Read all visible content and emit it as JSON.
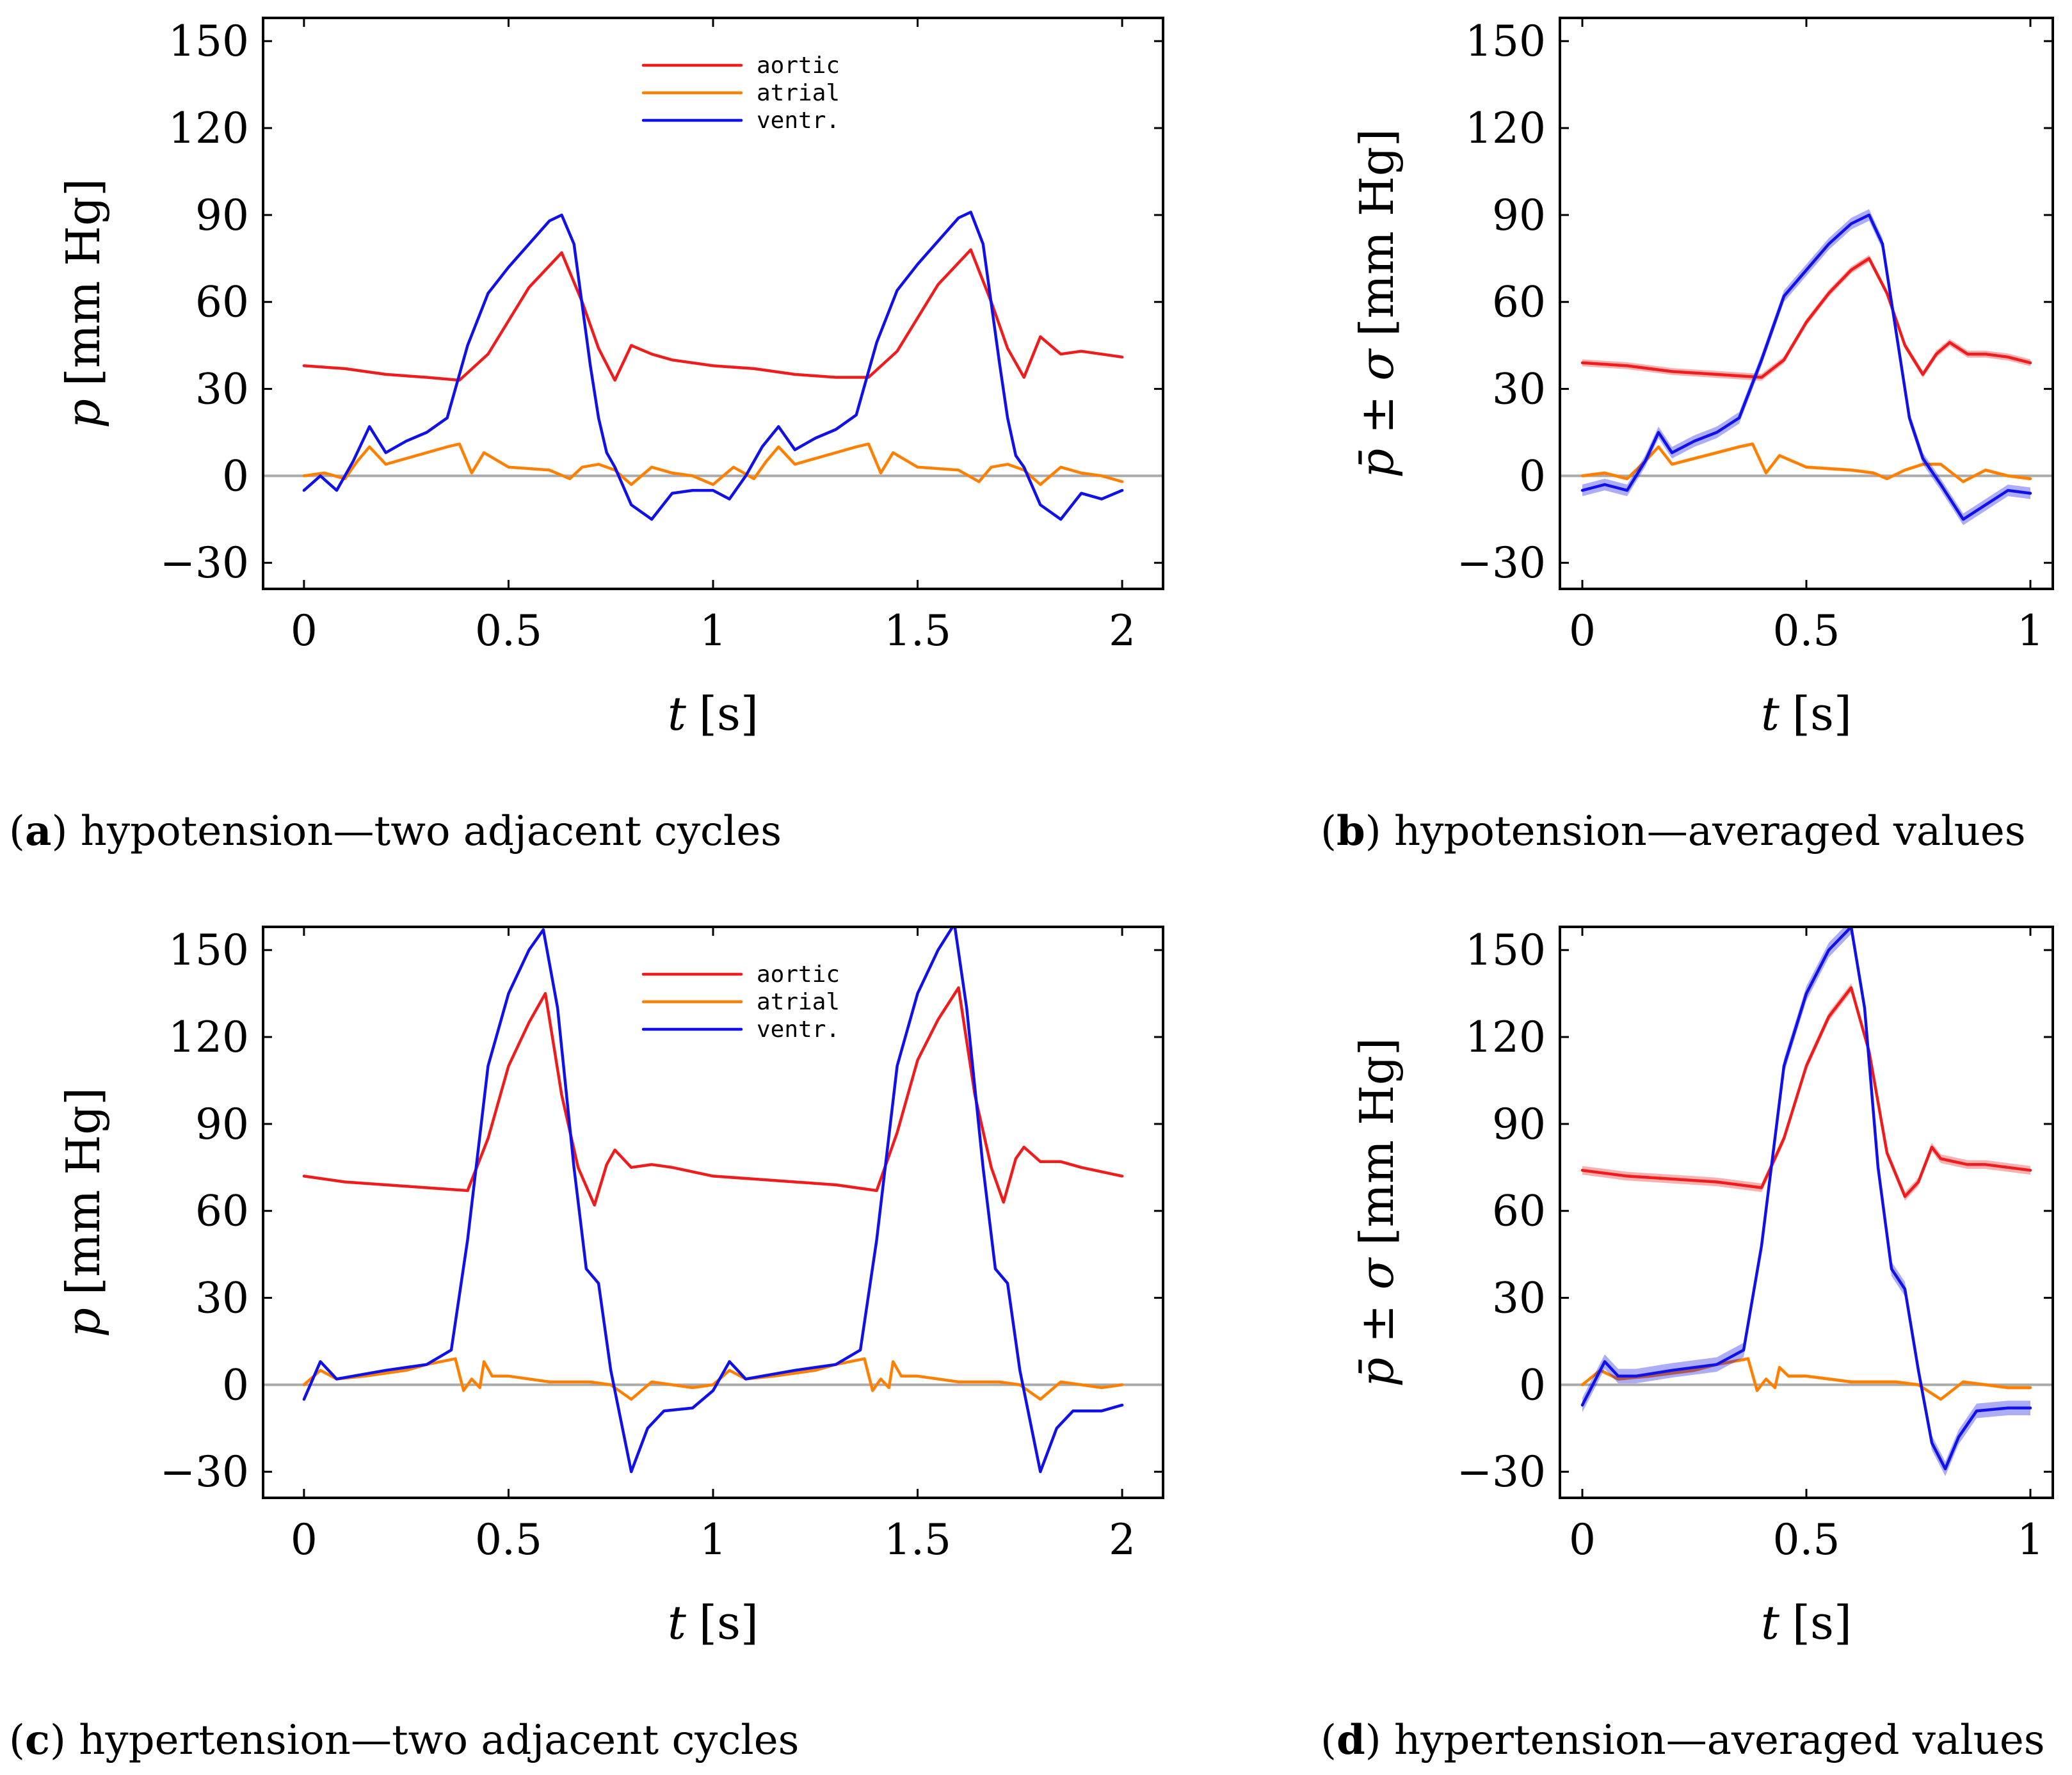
{
  "figure": {
    "colors": {
      "aortic": "#ee1c1c",
      "atrial": "#ff8000",
      "ventr": "#1010e8",
      "zero_line": "#aaaaaa"
    }
  },
  "chart_data": [
    {
      "id": "a",
      "type": "line",
      "caption_label": "a",
      "caption_text": "hypotension—two adjacent cycles",
      "xlabel_var": "t",
      "xlabel_unit": "[s]",
      "ylabel_var": "p",
      "ylabel_unit": "[mm Hg]",
      "xlim": [
        -0.1,
        2.1
      ],
      "ylim": [
        -39,
        158
      ],
      "xticks": [
        0,
        0.5,
        1,
        1.5,
        2
      ],
      "xtick_labels": [
        "0",
        "0.5",
        "1",
        "1.5",
        "2"
      ],
      "yticks": [
        -30,
        0,
        30,
        60,
        90,
        120,
        150
      ],
      "ytick_labels": [
        "−30",
        "0",
        "30",
        "60",
        "90",
        "120",
        "150"
      ],
      "legend": {
        "position": "top-center",
        "entries": [
          "aortic",
          "atrial",
          "ventr."
        ]
      },
      "series": [
        {
          "name": "aortic",
          "color_key": "aortic",
          "x": [
            0,
            0.1,
            0.2,
            0.3,
            0.38,
            0.45,
            0.55,
            0.63,
            0.68,
            0.72,
            0.76,
            0.8,
            0.85,
            0.9,
            1.0,
            1.1,
            1.2,
            1.3,
            1.38,
            1.45,
            1.55,
            1.63,
            1.68,
            1.72,
            1.76,
            1.8,
            1.85,
            1.9,
            2.0
          ],
          "y": [
            38,
            37,
            35,
            34,
            33,
            42,
            65,
            77,
            60,
            44,
            33,
            45,
            42,
            40,
            38,
            37,
            35,
            34,
            34,
            43,
            66,
            78,
            60,
            44,
            34,
            48,
            42,
            43,
            41
          ]
        },
        {
          "name": "atrial",
          "color_key": "atrial",
          "x": [
            0,
            0.05,
            0.1,
            0.13,
            0.16,
            0.2,
            0.25,
            0.3,
            0.35,
            0.38,
            0.41,
            0.44,
            0.5,
            0.6,
            0.65,
            0.68,
            0.72,
            0.76,
            0.8,
            0.85,
            0.9,
            0.95,
            1.0,
            1.05,
            1.1,
            1.13,
            1.16,
            1.2,
            1.25,
            1.3,
            1.35,
            1.38,
            1.41,
            1.44,
            1.5,
            1.6,
            1.65,
            1.68,
            1.72,
            1.76,
            1.8,
            1.85,
            1.9,
            1.95,
            2.0
          ],
          "y": [
            0,
            1,
            -1,
            5,
            10,
            4,
            6,
            8,
            10,
            11,
            1,
            8,
            3,
            2,
            -1,
            3,
            4,
            2,
            -3,
            3,
            1,
            0,
            -3,
            3,
            -1,
            5,
            10,
            4,
            6,
            8,
            10,
            11,
            1,
            8,
            3,
            2,
            -2,
            3,
            4,
            2,
            -3,
            3,
            1,
            0,
            -2
          ]
        },
        {
          "name": "ventr.",
          "color_key": "ventr",
          "x": [
            0,
            0.04,
            0.08,
            0.12,
            0.16,
            0.2,
            0.25,
            0.3,
            0.35,
            0.4,
            0.45,
            0.5,
            0.55,
            0.6,
            0.63,
            0.66,
            0.7,
            0.72,
            0.74,
            0.76,
            0.8,
            0.85,
            0.9,
            0.95,
            1.0,
            1.04,
            1.08,
            1.12,
            1.16,
            1.2,
            1.25,
            1.3,
            1.35,
            1.4,
            1.45,
            1.5,
            1.55,
            1.6,
            1.63,
            1.66,
            1.7,
            1.72,
            1.74,
            1.76,
            1.8,
            1.85,
            1.9,
            1.95,
            2.0
          ],
          "y": [
            -5,
            0,
            -5,
            5,
            17,
            8,
            12,
            15,
            20,
            45,
            63,
            72,
            80,
            88,
            90,
            80,
            38,
            20,
            8,
            3,
            -10,
            -15,
            -6,
            -5,
            -5,
            -8,
            0,
            10,
            17,
            9,
            13,
            16,
            21,
            46,
            64,
            73,
            81,
            89,
            91,
            80,
            39,
            20,
            7,
            3,
            -10,
            -15,
            -6,
            -8,
            -5
          ]
        }
      ]
    },
    {
      "id": "b",
      "type": "line",
      "caption_label": "b",
      "caption_text": "hypotension—averaged values",
      "xlabel_var": "t",
      "xlabel_unit": "[s]",
      "ylabel_var": "p̄ ± σ",
      "ylabel_unit": "[mm Hg]",
      "xlim": [
        -0.05,
        1.05
      ],
      "ylim": [
        -39,
        158
      ],
      "xticks": [
        0,
        0.5,
        1
      ],
      "xtick_labels": [
        "0",
        "0.5",
        "1"
      ],
      "yticks": [
        -30,
        0,
        30,
        60,
        90,
        120,
        150
      ],
      "ytick_labels": [
        "−30",
        "0",
        "30",
        "60",
        "90",
        "120",
        "150"
      ],
      "legend": null,
      "series": [
        {
          "name": "aortic",
          "color_key": "aortic",
          "band": 1.2,
          "x": [
            0,
            0.1,
            0.2,
            0.3,
            0.4,
            0.45,
            0.5,
            0.55,
            0.6,
            0.64,
            0.68,
            0.72,
            0.76,
            0.79,
            0.82,
            0.86,
            0.9,
            0.95,
            1.0
          ],
          "y": [
            39,
            38,
            36,
            35,
            34,
            40,
            53,
            63,
            71,
            75,
            63,
            45,
            35,
            42,
            46,
            42,
            42,
            41,
            39
          ]
        },
        {
          "name": "atrial",
          "color_key": "atrial",
          "band": 0.6,
          "x": [
            0,
            0.05,
            0.1,
            0.14,
            0.17,
            0.2,
            0.25,
            0.3,
            0.35,
            0.38,
            0.41,
            0.44,
            0.5,
            0.6,
            0.65,
            0.68,
            0.72,
            0.76,
            0.8,
            0.85,
            0.9,
            0.95,
            1.0
          ],
          "y": [
            0,
            1,
            -1,
            5,
            10,
            4,
            6,
            8,
            10,
            11,
            1,
            7,
            3,
            2,
            1,
            -1,
            2,
            4,
            4,
            -2,
            2,
            0,
            -1
          ]
        },
        {
          "name": "ventr.",
          "color_key": "ventr",
          "band": 2.0,
          "x": [
            0,
            0.05,
            0.1,
            0.14,
            0.17,
            0.2,
            0.25,
            0.3,
            0.35,
            0.4,
            0.45,
            0.5,
            0.55,
            0.6,
            0.64,
            0.67,
            0.7,
            0.73,
            0.76,
            0.8,
            0.85,
            0.9,
            0.95,
            1.0
          ],
          "y": [
            -5,
            -3,
            -5,
            5,
            15,
            8,
            12,
            15,
            20,
            40,
            62,
            71,
            80,
            87,
            90,
            80,
            50,
            20,
            6,
            -3,
            -15,
            -10,
            -5,
            -6
          ]
        }
      ]
    },
    {
      "id": "c",
      "type": "line",
      "caption_label": "c",
      "caption_text": "hypertension—two adjacent cycles",
      "xlabel_var": "t",
      "xlabel_unit": "[s]",
      "ylabel_var": "p",
      "ylabel_unit": "[mm Hg]",
      "xlim": [
        -0.1,
        2.1
      ],
      "ylim": [
        -39,
        158
      ],
      "xticks": [
        0,
        0.5,
        1,
        1.5,
        2
      ],
      "xtick_labels": [
        "0",
        "0.5",
        "1",
        "1.5",
        "2"
      ],
      "yticks": [
        -30,
        0,
        30,
        60,
        90,
        120,
        150
      ],
      "ytick_labels": [
        "−30",
        "0",
        "30",
        "60",
        "90",
        "120",
        "150"
      ],
      "legend": {
        "position": "top-center",
        "entries": [
          "aortic",
          "atrial",
          "ventr."
        ]
      },
      "series": [
        {
          "name": "aortic",
          "color_key": "aortic",
          "x": [
            0,
            0.1,
            0.2,
            0.3,
            0.4,
            0.45,
            0.5,
            0.55,
            0.59,
            0.63,
            0.67,
            0.71,
            0.74,
            0.76,
            0.8,
            0.85,
            0.9,
            1.0,
            1.1,
            1.2,
            1.3,
            1.4,
            1.45,
            1.5,
            1.55,
            1.6,
            1.64,
            1.68,
            1.71,
            1.74,
            1.76,
            1.8,
            1.85,
            1.9,
            2.0
          ],
          "y": [
            72,
            70,
            69,
            68,
            67,
            85,
            110,
            125,
            135,
            100,
            75,
            62,
            76,
            81,
            75,
            76,
            75,
            72,
            71,
            70,
            69,
            67,
            87,
            112,
            126,
            137,
            100,
            75,
            63,
            78,
            82,
            77,
            77,
            75,
            72
          ]
        },
        {
          "name": "atrial",
          "color_key": "atrial",
          "x": [
            0,
            0.04,
            0.08,
            0.15,
            0.25,
            0.3,
            0.37,
            0.39,
            0.41,
            0.43,
            0.44,
            0.46,
            0.5,
            0.6,
            0.7,
            0.75,
            0.8,
            0.85,
            0.9,
            0.95,
            1.0,
            1.04,
            1.08,
            1.15,
            1.25,
            1.3,
            1.37,
            1.39,
            1.41,
            1.43,
            1.44,
            1.46,
            1.5,
            1.6,
            1.7,
            1.75,
            1.8,
            1.85,
            1.9,
            1.95,
            2.0
          ],
          "y": [
            0,
            5,
            2,
            3,
            5,
            7,
            9,
            -2,
            2,
            -1,
            8,
            3,
            3,
            1,
            1,
            0,
            -5,
            1,
            0,
            -1,
            0,
            5,
            2,
            3,
            5,
            7,
            9,
            -2,
            2,
            -1,
            8,
            3,
            3,
            1,
            1,
            0,
            -5,
            1,
            0,
            -1,
            0
          ]
        },
        {
          "name": "ventr.",
          "color_key": "ventr",
          "x": [
            0,
            0.04,
            0.08,
            0.12,
            0.2,
            0.3,
            0.36,
            0.4,
            0.45,
            0.5,
            0.55,
            0.585,
            0.62,
            0.66,
            0.69,
            0.72,
            0.75,
            0.8,
            0.84,
            0.88,
            0.95,
            1.0,
            1.04,
            1.08,
            1.12,
            1.2,
            1.3,
            1.36,
            1.4,
            1.45,
            1.5,
            1.55,
            1.59,
            1.62,
            1.66,
            1.69,
            1.72,
            1.75,
            1.8,
            1.84,
            1.88,
            1.95,
            2.0
          ],
          "y": [
            -5,
            8,
            2,
            3,
            5,
            7,
            12,
            50,
            110,
            135,
            150,
            157,
            130,
            75,
            40,
            35,
            5,
            -30,
            -15,
            -9,
            -8,
            -2,
            8,
            2,
            3,
            5,
            7,
            12,
            50,
            110,
            135,
            150,
            159,
            130,
            75,
            40,
            35,
            5,
            -30,
            -15,
            -9,
            -9,
            -7
          ]
        }
      ]
    },
    {
      "id": "d",
      "type": "line",
      "caption_label": "d",
      "caption_text": "hypertension—averaged values",
      "xlabel_var": "t",
      "xlabel_unit": "[s]",
      "ylabel_var": "p̄ ± σ",
      "ylabel_unit": "[mm Hg]",
      "xlim": [
        -0.05,
        1.05
      ],
      "ylim": [
        -39,
        158
      ],
      "xticks": [
        0,
        0.5,
        1
      ],
      "xtick_labels": [
        "0",
        "0.5",
        "1"
      ],
      "yticks": [
        -30,
        0,
        30,
        60,
        90,
        120,
        150
      ],
      "ytick_labels": [
        "−30",
        "0",
        "30",
        "60",
        "90",
        "120",
        "150"
      ],
      "legend": null,
      "series": [
        {
          "name": "aortic",
          "color_key": "aortic",
          "band": 1.5,
          "x": [
            0,
            0.1,
            0.2,
            0.3,
            0.4,
            0.45,
            0.5,
            0.55,
            0.6,
            0.64,
            0.68,
            0.72,
            0.75,
            0.78,
            0.8,
            0.83,
            0.86,
            0.9,
            1.0
          ],
          "y": [
            74,
            72,
            71,
            70,
            68,
            85,
            110,
            127,
            137,
            115,
            80,
            65,
            70,
            82,
            78,
            77,
            76,
            76,
            74
          ]
        },
        {
          "name": "atrial",
          "color_key": "atrial",
          "band": 0.6,
          "x": [
            0,
            0.04,
            0.08,
            0.15,
            0.25,
            0.3,
            0.37,
            0.39,
            0.41,
            0.43,
            0.44,
            0.46,
            0.5,
            0.6,
            0.7,
            0.75,
            0.8,
            0.85,
            0.9,
            0.95,
            1.0
          ],
          "y": [
            0,
            5,
            2,
            3,
            5,
            7,
            9,
            -2,
            2,
            -1,
            6,
            3,
            3,
            1,
            1,
            0,
            -5,
            1,
            0,
            -1,
            -1
          ]
        },
        {
          "name": "ventr.",
          "color_key": "ventr",
          "band": 2.5,
          "x": [
            0,
            0.05,
            0.08,
            0.12,
            0.2,
            0.3,
            0.36,
            0.4,
            0.45,
            0.5,
            0.55,
            0.6,
            0.63,
            0.66,
            0.69,
            0.72,
            0.75,
            0.78,
            0.81,
            0.84,
            0.88,
            0.95,
            1.0
          ],
          "y": [
            -7,
            8,
            3,
            3,
            5,
            7,
            12,
            48,
            110,
            135,
            150,
            158,
            130,
            75,
            40,
            33,
            5,
            -20,
            -29,
            -18,
            -9,
            -8,
            -8
          ]
        }
      ]
    }
  ]
}
